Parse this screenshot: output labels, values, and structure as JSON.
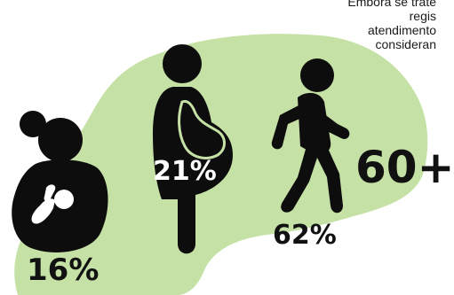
{
  "caption": {
    "lines": [
      "Embora se trate",
      "regis",
      "atendimento",
      "consideran"
    ]
  },
  "stats": {
    "breastfeeding": "16%",
    "pregnant": "21%",
    "walking": "62%",
    "elderly": "60+"
  },
  "colors": {
    "background": "#ffffff",
    "blob": "#c5e1a5",
    "icon": "#0d0d0d",
    "accent_line": "#c5e1a5"
  },
  "icons": [
    "breastfeeding-mother-icon",
    "pregnant-woman-icon",
    "walking-person-icon"
  ]
}
